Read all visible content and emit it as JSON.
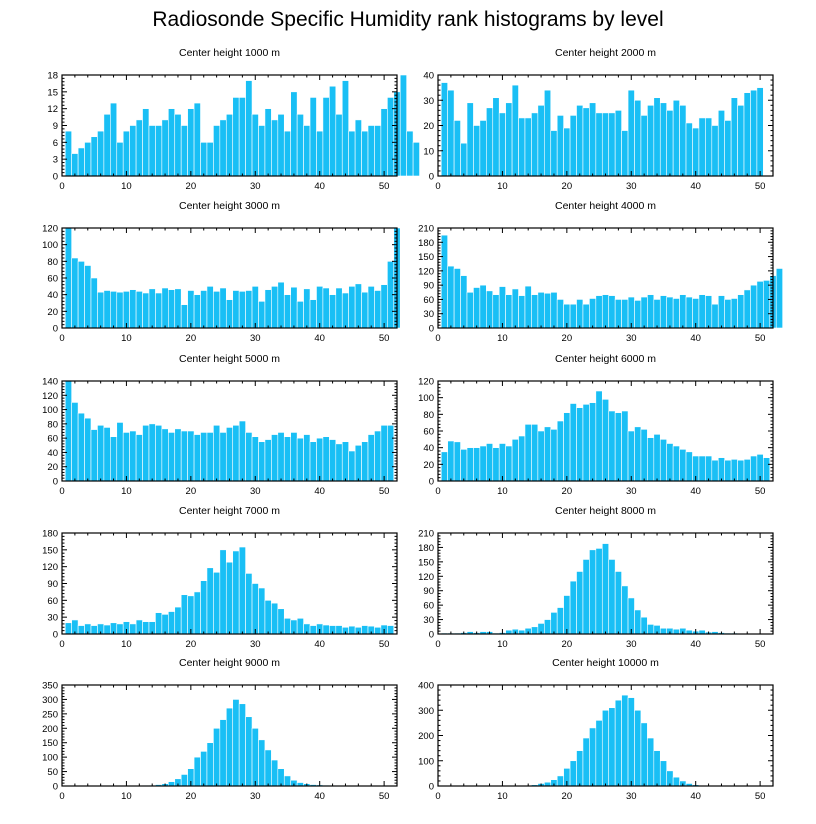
{
  "title": "Radiosonde Specific Humidity rank histograms by level",
  "colors": {
    "bar": "#19bff5",
    "axis": "#000000",
    "background": "#ffffff"
  },
  "chart_data": [
    {
      "type": "bar",
      "title": "Center height 1000 m",
      "xlim": [
        0,
        52
      ],
      "ylim": [
        0,
        18
      ],
      "xticks": [
        0,
        10,
        20,
        30,
        40,
        50
      ],
      "yticks": [
        0,
        3,
        6,
        9,
        12,
        15,
        18
      ],
      "values": [
        8,
        4,
        5,
        6,
        7,
        8,
        11,
        13,
        6,
        8,
        9,
        10,
        12,
        9,
        9,
        10,
        12,
        11,
        9,
        12,
        13,
        6,
        6,
        9,
        10,
        11,
        14,
        14,
        17,
        11,
        9,
        12,
        10,
        11,
        8,
        15,
        11,
        9,
        14,
        8,
        14,
        16,
        11,
        17,
        8,
        10,
        8,
        9,
        9,
        12,
        14,
        15,
        18,
        8,
        6
      ]
    },
    {
      "type": "bar",
      "title": "Center height 2000 m",
      "xlim": [
        0,
        52
      ],
      "ylim": [
        0,
        40
      ],
      "xticks": [
        0,
        10,
        20,
        30,
        40,
        50
      ],
      "yticks": [
        0,
        10,
        20,
        30,
        40
      ],
      "values": [
        37,
        34,
        22,
        13,
        29,
        20,
        22,
        27,
        31,
        25,
        29,
        36,
        23,
        23,
        25,
        28,
        34,
        18,
        24,
        19,
        24,
        28,
        27,
        29,
        25,
        25,
        25,
        26,
        18,
        34,
        30,
        24,
        28,
        31,
        29,
        26,
        30,
        28,
        21,
        19,
        23,
        23,
        20,
        26,
        22,
        31,
        28,
        33,
        34,
        35
      ]
    },
    {
      "type": "bar",
      "title": "Center height 3000 m",
      "xlim": [
        0,
        52
      ],
      "ylim": [
        0,
        120
      ],
      "xticks": [
        0,
        10,
        20,
        30,
        40,
        50
      ],
      "yticks": [
        0,
        20,
        40,
        60,
        80,
        100,
        120
      ],
      "values": [
        120,
        84,
        80,
        75,
        60,
        43,
        45,
        44,
        43,
        44,
        46,
        44,
        42,
        47,
        42,
        48,
        46,
        47,
        28,
        45,
        40,
        45,
        50,
        44,
        48,
        34,
        45,
        44,
        45,
        50,
        32,
        46,
        50,
        55,
        40,
        49,
        32,
        47,
        34,
        50,
        48,
        40,
        48,
        42,
        50,
        53,
        43,
        50,
        45,
        52,
        80,
        120
      ]
    },
    {
      "type": "bar",
      "title": "Center height 4000 m",
      "xlim": [
        0,
        52
      ],
      "ylim": [
        0,
        210
      ],
      "xticks": [
        0,
        10,
        20,
        30,
        40,
        50
      ],
      "yticks": [
        0,
        30,
        60,
        90,
        120,
        150,
        180,
        210
      ],
      "values": [
        195,
        130,
        125,
        110,
        75,
        85,
        90,
        78,
        70,
        87,
        70,
        82,
        68,
        88,
        70,
        75,
        73,
        75,
        60,
        50,
        50,
        60,
        50,
        62,
        68,
        70,
        68,
        60,
        60,
        65,
        58,
        65,
        70,
        60,
        68,
        65,
        62,
        70,
        65,
        62,
        70,
        68,
        50,
        68,
        60,
        62,
        70,
        80,
        90,
        98,
        100,
        110,
        125
      ]
    },
    {
      "type": "bar",
      "title": "Center height 5000 m",
      "xlim": [
        0,
        52
      ],
      "ylim": [
        0,
        140
      ],
      "xticks": [
        0,
        10,
        20,
        30,
        40,
        50
      ],
      "yticks": [
        0,
        20,
        40,
        60,
        80,
        100,
        120,
        140
      ],
      "values": [
        140,
        110,
        95,
        88,
        72,
        78,
        75,
        62,
        82,
        68,
        70,
        65,
        78,
        80,
        78,
        73,
        68,
        73,
        70,
        70,
        65,
        68,
        68,
        78,
        68,
        75,
        78,
        84,
        68,
        62,
        55,
        58,
        65,
        68,
        62,
        68,
        60,
        65,
        55,
        60,
        62,
        58,
        52,
        55,
        42,
        50,
        55,
        65,
        70,
        78,
        78
      ]
    },
    {
      "type": "bar",
      "title": "Center height 6000 m",
      "xlim": [
        0,
        52
      ],
      "ylim": [
        0,
        120
      ],
      "xticks": [
        0,
        10,
        20,
        30,
        40,
        50
      ],
      "yticks": [
        0,
        20,
        40,
        60,
        80,
        100,
        120
      ],
      "values": [
        35,
        48,
        47,
        38,
        40,
        40,
        42,
        45,
        40,
        45,
        42,
        50,
        54,
        68,
        68,
        60,
        65,
        62,
        72,
        82,
        93,
        88,
        92,
        94,
        108,
        98,
        84,
        82,
        84,
        60,
        65,
        62,
        52,
        56,
        50,
        45,
        42,
        38,
        35,
        30,
        30,
        30,
        25,
        28,
        25,
        26,
        25,
        26,
        30,
        32,
        28
      ]
    },
    {
      "type": "bar",
      "title": "Center height 7000 m",
      "xlim": [
        0,
        52
      ],
      "ylim": [
        0,
        180
      ],
      "xticks": [
        0,
        10,
        20,
        30,
        40,
        50
      ],
      "yticks": [
        0,
        30,
        60,
        90,
        120,
        150,
        180
      ],
      "values": [
        20,
        25,
        15,
        18,
        15,
        18,
        16,
        20,
        18,
        22,
        18,
        25,
        22,
        22,
        38,
        35,
        40,
        48,
        70,
        68,
        75,
        95,
        118,
        110,
        150,
        128,
        148,
        155,
        108,
        90,
        82,
        60,
        55,
        45,
        28,
        25,
        28,
        18,
        15,
        18,
        16,
        15,
        15,
        12,
        14,
        12,
        15,
        14,
        12,
        16,
        15
      ]
    },
    {
      "type": "bar",
      "title": "Center height 8000 m",
      "xlim": [
        0,
        52
      ],
      "ylim": [
        0,
        210
      ],
      "xticks": [
        0,
        10,
        20,
        30,
        40,
        50
      ],
      "yticks": [
        0,
        30,
        60,
        90,
        120,
        150,
        180,
        210
      ],
      "values": [
        2,
        2,
        2,
        3,
        5,
        3,
        5,
        5,
        2,
        3,
        8,
        10,
        8,
        12,
        15,
        22,
        30,
        45,
        55,
        80,
        110,
        130,
        155,
        175,
        178,
        188,
        155,
        130,
        100,
        75,
        50,
        35,
        20,
        18,
        12,
        12,
        10,
        12,
        8,
        6,
        8,
        4,
        5,
        3,
        2,
        2,
        1,
        0,
        0,
        1,
        0
      ]
    },
    {
      "type": "bar",
      "title": "Center height 9000 m",
      "xlim": [
        0,
        52
      ],
      "ylim": [
        0,
        350
      ],
      "xticks": [
        0,
        10,
        20,
        30,
        40,
        50
      ],
      "yticks": [
        0,
        50,
        100,
        150,
        200,
        250,
        300,
        350
      ],
      "values": [
        0,
        0,
        0,
        0,
        0,
        0,
        0,
        0,
        0,
        0,
        0,
        0,
        2,
        3,
        5,
        8,
        15,
        25,
        40,
        60,
        100,
        120,
        150,
        200,
        230,
        270,
        300,
        285,
        240,
        200,
        160,
        125,
        90,
        60,
        35,
        20,
        12,
        8,
        5,
        4,
        3,
        2,
        1,
        1,
        0,
        0,
        0,
        0,
        0,
        0,
        0
      ]
    },
    {
      "type": "bar",
      "title": "Center height 10000 m",
      "xlim": [
        0,
        52
      ],
      "ylim": [
        0,
        400
      ],
      "xticks": [
        0,
        10,
        20,
        30,
        40,
        50
      ],
      "yticks": [
        0,
        100,
        200,
        300,
        400
      ],
      "values": [
        0,
        0,
        0,
        0,
        0,
        0,
        0,
        0,
        0,
        0,
        0,
        0,
        0,
        2,
        5,
        10,
        15,
        25,
        40,
        70,
        100,
        140,
        190,
        230,
        260,
        300,
        310,
        340,
        360,
        350,
        300,
        250,
        190,
        140,
        100,
        60,
        35,
        20,
        10,
        5,
        3,
        2,
        1,
        0,
        0,
        0,
        0,
        0,
        0,
        0,
        0
      ]
    }
  ]
}
